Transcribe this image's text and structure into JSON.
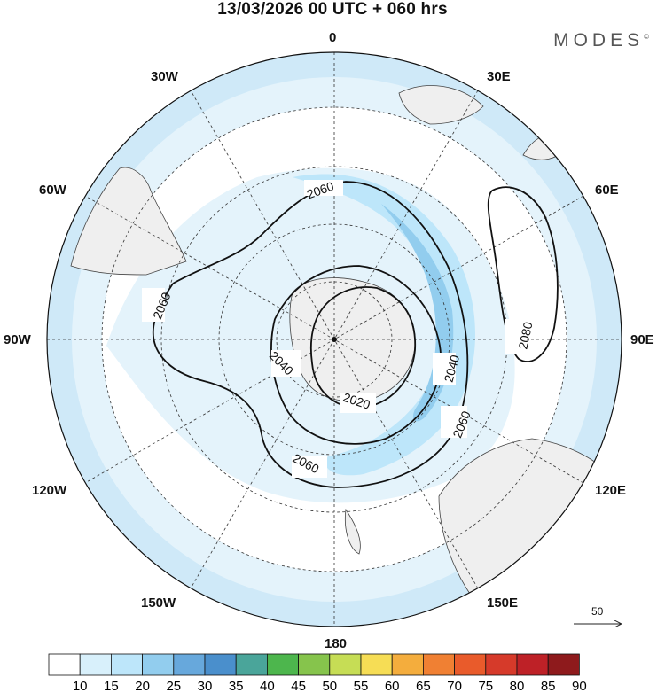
{
  "header": {
    "title": "13/03/2026  00 UTC  + 060 hrs",
    "brand": "MODES",
    "brand_mark": "©"
  },
  "map": {
    "projection": "polar-stereographic-south",
    "longitude_labels": {
      "lon_0": "0",
      "lon_30e": "30E",
      "lon_60e": "60E",
      "lon_90e": "90E",
      "lon_120e": "120E",
      "lon_150e": "150E",
      "lon_180": "180",
      "lon_150w": "150W",
      "lon_120w": "120W",
      "lon_90w": "90W",
      "lon_60w": "60W",
      "lon_30w": "30W"
    },
    "contour_labels": [
      "2060",
      "2060",
      "2060",
      "2060",
      "2040",
      "2040",
      "2020",
      "2080"
    ],
    "wind_reference": {
      "value": "50"
    }
  },
  "colorbar": {
    "labels": [
      "10",
      "15",
      "20",
      "25",
      "30",
      "35",
      "40",
      "45",
      "50",
      "55",
      "60",
      "65",
      "70",
      "75",
      "80",
      "85",
      "90"
    ],
    "colors": [
      "#ffffff",
      "#d8f0fb",
      "#bde6fa",
      "#92cdee",
      "#67a8dc",
      "#4a8fcc",
      "#4aa59a",
      "#4db64d",
      "#86c44c",
      "#c6dd55",
      "#f6dd55",
      "#f4ad3d",
      "#f08033",
      "#e95b2b",
      "#d63a2a",
      "#be2127",
      "#8e1a1c"
    ]
  }
}
